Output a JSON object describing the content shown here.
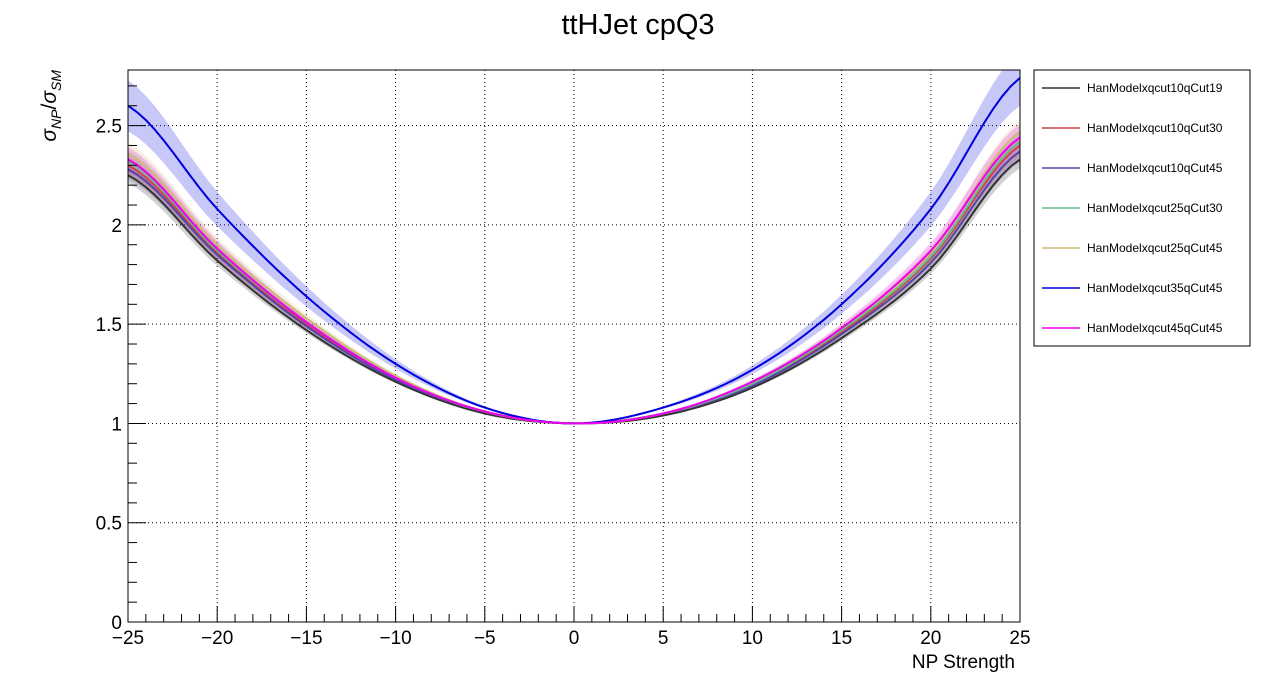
{
  "chart_data": {
    "type": "line",
    "title": "ttHJet cpQ3",
    "xlabel": "NP Strength",
    "ylabel": {
      "base": "σ",
      "num_sub": "NP",
      "sep": "/",
      "den_base": "σ",
      "den_sub": "SM"
    },
    "xlim": [
      -25,
      25
    ],
    "ylim": [
      0,
      2.78
    ],
    "xticks": [
      -25,
      -20,
      -15,
      -10,
      -5,
      0,
      5,
      10,
      15,
      20,
      25
    ],
    "xtick_labels": [
      "−25",
      "−20",
      "−15",
      "−10",
      "−5",
      "0",
      "5",
      "10",
      "15",
      "20",
      "25"
    ],
    "yticks": [
      0,
      0.5,
      1,
      1.5,
      2,
      2.5
    ],
    "ytick_labels": [
      "0",
      "0.5",
      "1",
      "1.5",
      "2",
      "2.5"
    ],
    "grid": true,
    "legend_position": "right",
    "x": [
      -25,
      -20,
      -15,
      -10,
      -5,
      0,
      5,
      10,
      15,
      20,
      25
    ],
    "series": [
      {
        "name": "HanModelxqcut10qCut19",
        "color": "#333333",
        "values": [
          2.25,
          1.82,
          1.47,
          1.21,
          1.05,
          1.0,
          1.04,
          1.18,
          1.43,
          1.78,
          2.33
        ],
        "band": 0.05
      },
      {
        "name": "HanModelxqcut10qCut30",
        "color": "#cc4444",
        "values": [
          2.3,
          1.86,
          1.5,
          1.23,
          1.06,
          1.0,
          1.05,
          1.2,
          1.46,
          1.83,
          2.4
        ],
        "band": 0.06
      },
      {
        "name": "HanModelxqcut10qCut45",
        "color": "#5544aa",
        "values": [
          2.28,
          1.85,
          1.49,
          1.22,
          1.06,
          1.0,
          1.05,
          1.19,
          1.45,
          1.81,
          2.37
        ],
        "band": 0.06
      },
      {
        "name": "HanModelxqcut25qCut30",
        "color": "#66bb88",
        "values": [
          2.32,
          1.87,
          1.51,
          1.23,
          1.06,
          1.0,
          1.05,
          1.2,
          1.47,
          1.84,
          2.42
        ],
        "band": 0.06
      },
      {
        "name": "HanModelxqcut25qCut45",
        "color": "#ccbb77",
        "values": [
          2.36,
          1.9,
          1.53,
          1.24,
          1.06,
          1.0,
          1.05,
          1.21,
          1.48,
          1.86,
          2.47
        ],
        "band": 0.06
      },
      {
        "name": "HanModelxqcut35qCut45",
        "color": "#0000dd",
        "values": [
          2.6,
          2.08,
          1.64,
          1.3,
          1.08,
          1.0,
          1.08,
          1.27,
          1.6,
          2.08,
          2.74
        ],
        "band": 0.12
      },
      {
        "name": "HanModelxqcut45qCut45",
        "color": "#ee00ee",
        "values": [
          2.33,
          1.88,
          1.51,
          1.23,
          1.06,
          1.0,
          1.05,
          1.21,
          1.48,
          1.87,
          2.44
        ],
        "band": 0.07
      }
    ]
  }
}
